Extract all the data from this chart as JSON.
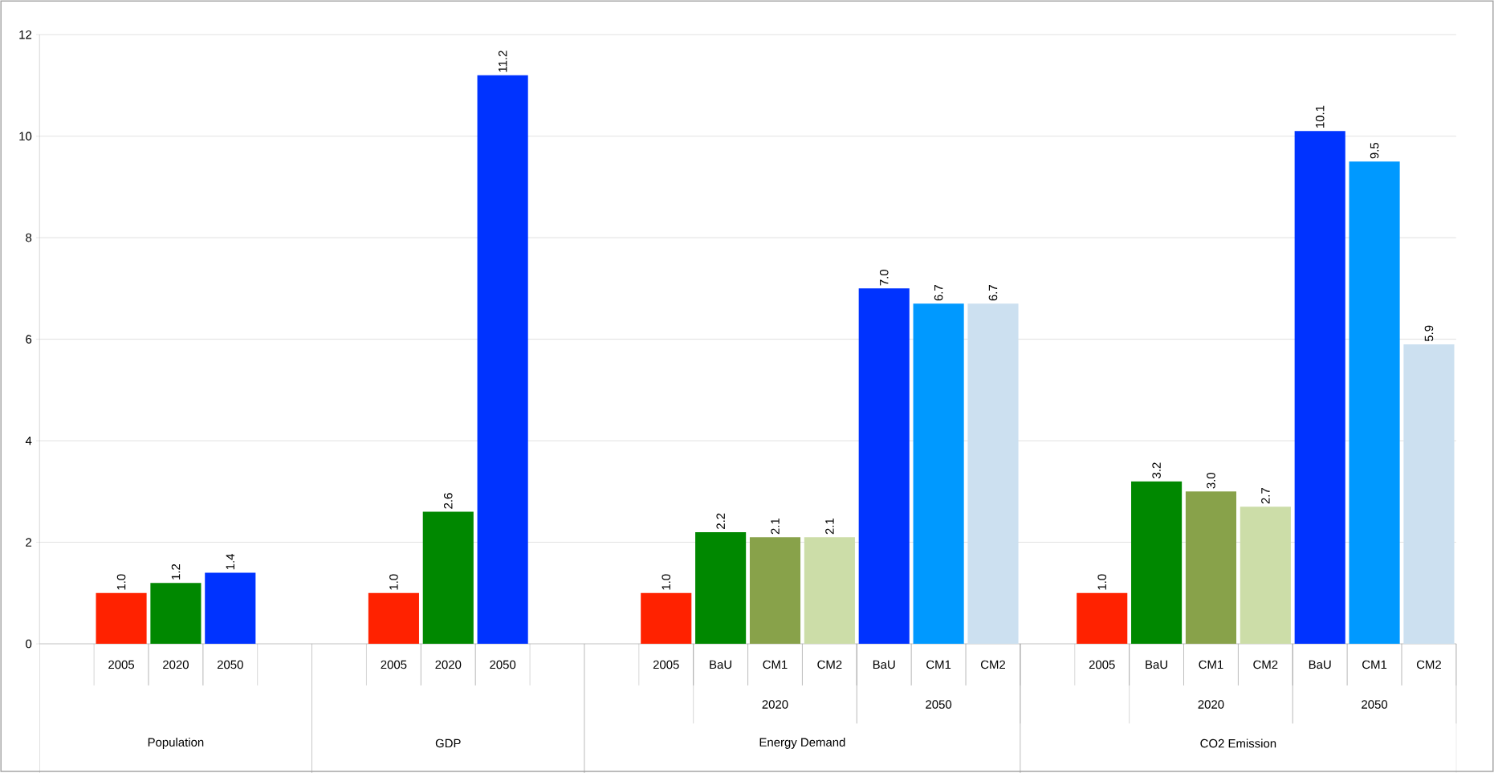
{
  "chart_data": {
    "type": "bar",
    "categories": [
      null,
      "2005",
      "2020",
      "2050",
      null,
      null,
      "2005",
      "2020",
      "2050",
      null,
      null,
      "2005",
      "BaU",
      "CM1",
      "CM2",
      "BaU",
      "CM1",
      "CM2",
      null,
      "2005",
      "BaU",
      "CM1",
      "CM2",
      "BaU",
      "CM1",
      "CM2"
    ],
    "values": [
      null,
      1.0,
      1.2,
      1.4,
      null,
      null,
      1.0,
      2.6,
      11.2,
      null,
      null,
      1.0,
      2.2,
      2.1,
      2.1,
      7.0,
      6.7,
      6.7,
      null,
      1.0,
      3.2,
      3.0,
      2.7,
      10.1,
      9.5,
      5.9
    ],
    "value_labels": [
      null,
      "1.0",
      "1.2",
      "1.4",
      null,
      null,
      "1.0",
      "2.6",
      "11.2",
      null,
      null,
      "1.0",
      "2.2",
      "2.1",
      "2.1",
      "7.0",
      "6.7",
      "6.7",
      null,
      "1.0",
      "3.2",
      "3.0",
      "2.7",
      "10.1",
      "9.5",
      "5.9"
    ],
    "colors": [
      "#ffffff",
      "#ff2200",
      "#008800",
      "#0033ff",
      "#ffffff",
      "#ffffff",
      "#ff2200",
      "#008800",
      "#0033ff",
      "#ffffff",
      "#ffffff",
      "#ff2200",
      "#008800",
      "#88a24a",
      "#ccdda8",
      "#0033ff",
      "#0099ff",
      "#cce0f0",
      "#ffffff",
      "#ff2200",
      "#008800",
      "#88a24a",
      "#ccdda8",
      "#0033ff",
      "#0099ff",
      "#cce0f0"
    ],
    "annotations": [
      "2020",
      "2050",
      "2020",
      "2050",
      "Population",
      "GDP",
      "Energy Demand",
      "CO2 Emission"
    ],
    "ylim": [
      0,
      12
    ],
    "yticks": [
      0,
      2,
      4,
      6,
      8,
      10,
      12
    ],
    "grid": "y"
  }
}
